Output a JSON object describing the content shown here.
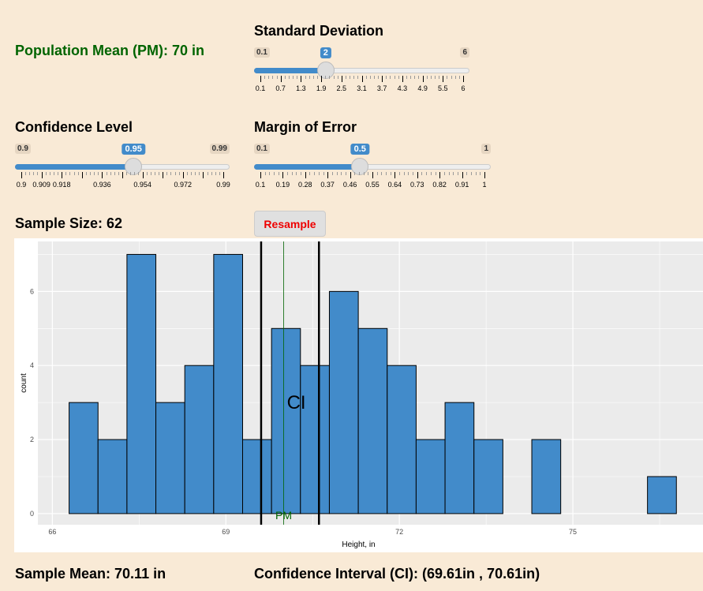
{
  "population_mean": {
    "label": "Population Mean (PM): 70 in"
  },
  "sliders": {
    "sd": {
      "title": "Standard Deviation",
      "min": 0.1,
      "max": 6,
      "value": 2,
      "min_label": "0.1",
      "max_label": "6",
      "value_label": "2",
      "ticks": [
        "0.1",
        "0.7",
        "1.3",
        "1.9",
        "2.5",
        "3.1",
        "3.7",
        "4.3",
        "4.9",
        "5.5",
        "6"
      ]
    },
    "conf": {
      "title": "Confidence Level",
      "min": 0.9,
      "max": 0.99,
      "value": 0.95,
      "min_label": "0.9",
      "max_label": "0.99",
      "value_label": "0.95",
      "ticks": [
        "0.9",
        "0.909",
        "0.918",
        "",
        "0.936",
        "",
        "0.954",
        "",
        "0.972",
        "",
        "0.99"
      ]
    },
    "moe": {
      "title": "Margin of Error",
      "min": 0.1,
      "max": 1,
      "value": 0.5,
      "min_label": "0.1",
      "max_label": "1",
      "value_label": "0.5",
      "ticks": [
        "0.1",
        "0.19",
        "0.28",
        "0.37",
        "0.46",
        "0.55",
        "0.64",
        "0.73",
        "0.82",
        "0.91",
        "1"
      ]
    }
  },
  "sample_size": {
    "label": "Sample Size: 62"
  },
  "resample_button": {
    "label": "Resample",
    "color": "#e00000"
  },
  "sample_mean": {
    "label": "Sample Mean: 70.11 in"
  },
  "confidence_interval": {
    "label": "Confidence Interval (CI): (69.61in , 70.61in)"
  },
  "chart_data": {
    "type": "bar",
    "xlabel": "Height, in",
    "ylabel": "count",
    "bin_start": 66.29,
    "bin_width": 0.5,
    "values": [
      3,
      2,
      7,
      3,
      4,
      7,
      2,
      5,
      4,
      6,
      5,
      4,
      2,
      3,
      2,
      0,
      2,
      0,
      0,
      0,
      1
    ],
    "x_ticks": [
      "66",
      "69",
      "72",
      "75"
    ],
    "x_tick_values": [
      66,
      69,
      72,
      75
    ],
    "y_ticks": [
      "0",
      "2",
      "4",
      "6"
    ],
    "xlim": [
      65.75,
      77.25
    ],
    "ylim": [
      -0.3,
      7.35
    ],
    "bar_color": "#428bca",
    "grid": true,
    "vlines": {
      "ci_low": 69.61,
      "ci_high": 70.61,
      "pm": 70
    },
    "annotations": {
      "ci": "CI",
      "pm": "PM"
    },
    "pm_color": "#006400"
  }
}
